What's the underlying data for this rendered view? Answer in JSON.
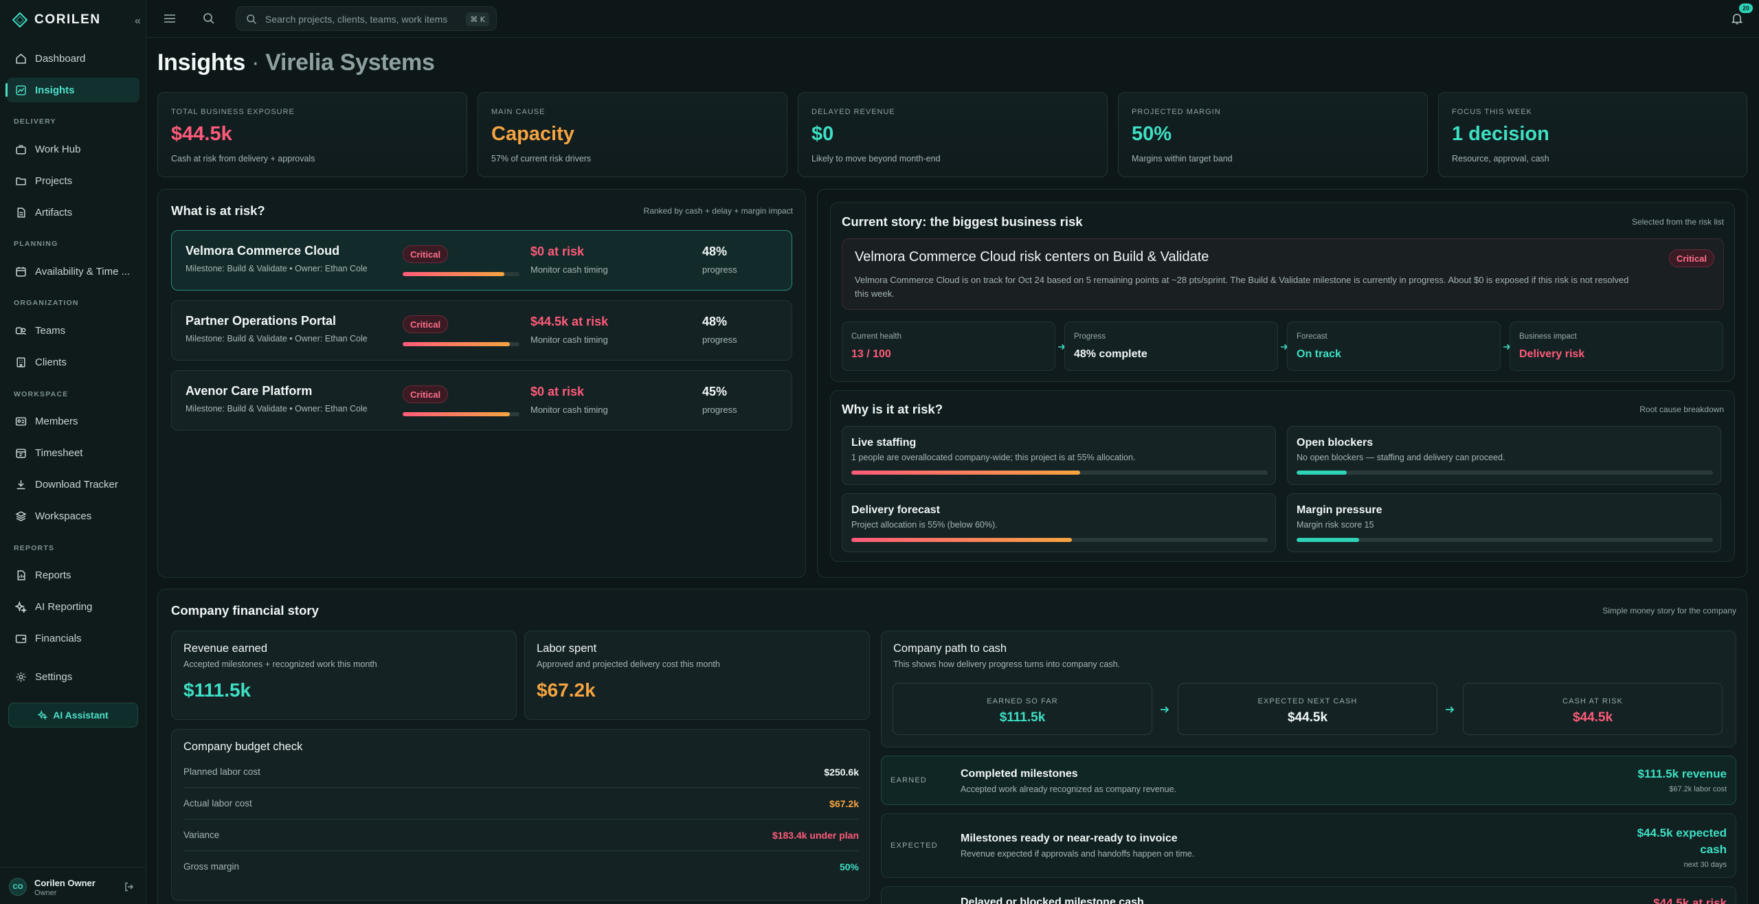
{
  "sidebar": {
    "brand": "CORILEN",
    "items": [
      {
        "label": "Dashboard",
        "icon": "dashboard-icon"
      },
      {
        "label": "Insights",
        "icon": "insights-icon"
      },
      {
        "label": "Work Hub",
        "icon": "briefcase-icon"
      },
      {
        "label": "Projects",
        "icon": "folder-icon"
      },
      {
        "label": "Artifacts",
        "icon": "file-icon"
      },
      {
        "label": "Availability & Time ...",
        "icon": "calendar-icon"
      },
      {
        "label": "Teams",
        "icon": "teams-icon"
      },
      {
        "label": "Clients",
        "icon": "building-icon"
      },
      {
        "label": "Members",
        "icon": "id-card-icon"
      },
      {
        "label": "Timesheet",
        "icon": "timesheet-icon"
      },
      {
        "label": "Download Tracker",
        "icon": "download-icon"
      },
      {
        "label": "Workspaces",
        "icon": "layers-icon"
      },
      {
        "label": "Reports",
        "icon": "report-icon"
      },
      {
        "label": "AI Reporting",
        "icon": "sparkle-icon"
      },
      {
        "label": "Financials",
        "icon": "wallet-icon"
      },
      {
        "label": "Settings",
        "icon": "gear-icon"
      }
    ],
    "sections": {
      "delivery": "DELIVERY",
      "planning": "PLANNING",
      "organization": "ORGANIZATION",
      "workspace": "WORKSPACE",
      "reports": "REPORTS"
    },
    "ai_button": "AI Assistant",
    "user": {
      "initials": "CO",
      "name": "Corilen Owner",
      "role": "Owner"
    }
  },
  "topbar": {
    "search_placeholder": "Search projects, clients, teams, work items",
    "shortcut": "⌘ K",
    "notification_count": "20"
  },
  "page": {
    "title": "Insights",
    "separator": "·",
    "org": "Virelia Systems"
  },
  "kpis": [
    {
      "label": "TOTAL BUSINESS EXPOSURE",
      "value": "$44.5k",
      "sub": "Cash at risk from delivery + approvals",
      "color": "#ff5b7a"
    },
    {
      "label": "MAIN CAUSE",
      "value": "Capacity",
      "sub": "57% of current risk drivers",
      "color": "#f5a441"
    },
    {
      "label": "DELAYED REVENUE",
      "value": "$0",
      "sub": "Likely to move beyond month-end",
      "color": "#3ee0c3"
    },
    {
      "label": "PROJECTED MARGIN",
      "value": "50%",
      "sub": "Margins within target band",
      "color": "#3ee0c3"
    },
    {
      "label": "FOCUS THIS WEEK",
      "value": "1 decision",
      "sub": "Resource, approval, cash",
      "color": "#3ee0c3"
    }
  ],
  "risk_panel": {
    "title": "What is at risk?",
    "note": "Ranked by cash + delay + margin impact",
    "rows": [
      {
        "name": "Velmora Commerce Cloud",
        "meta": "Milestone: Build & Validate • Owner: Ethan Cole",
        "badge": "Critical",
        "bar": 0.87,
        "at_risk": "$0 at risk",
        "at_risk_sub": "Monitor cash timing",
        "pct": "48%",
        "pct_sub": "progress"
      },
      {
        "name": "Partner Operations Portal",
        "meta": "Milestone: Build & Validate • Owner: Ethan Cole",
        "badge": "Critical",
        "bar": 0.92,
        "at_risk": "$44.5k at risk",
        "at_risk_sub": "Monitor cash timing",
        "pct": "48%",
        "pct_sub": "progress"
      },
      {
        "name": "Avenor Care Platform",
        "meta": "Milestone: Build & Validate • Owner: Ethan Cole",
        "badge": "Critical",
        "bar": 0.92,
        "at_risk": "$0 at risk",
        "at_risk_sub": "Monitor cash timing",
        "pct": "45%",
        "pct_sub": "progress"
      }
    ]
  },
  "story": {
    "title": "Current story: the biggest business risk",
    "note": "Selected from the risk list",
    "headline": "Velmora Commerce Cloud risk centers on Build & Validate",
    "badge": "Critical",
    "text": "Velmora Commerce Cloud is on track for Oct 24 based on 5 remaining points at ~28 pts/sprint. The Build & Validate milestone is currently in progress. About $0 is exposed if this risk is not resolved this week.",
    "metrics": [
      {
        "label": "Current health",
        "value": "13 / 100",
        "color": "#ff5b7a"
      },
      {
        "label": "Progress",
        "value": "48% complete",
        "color": "#f2f7f7"
      },
      {
        "label": "Forecast",
        "value": "On track",
        "color": "#3ee0c3"
      },
      {
        "label": "Business impact",
        "value": "Delivery risk",
        "color": "#ff5b7a"
      }
    ]
  },
  "why": {
    "title": "Why is it at risk?",
    "note": "Root cause breakdown",
    "drivers": [
      {
        "title": "Live staffing",
        "desc": "1 people are overallocated company-wide; this project is at 55% allocation.",
        "level": 0.55,
        "tone": "red"
      },
      {
        "title": "Open blockers",
        "desc": "No open blockers — staffing and delivery can proceed.",
        "level": 0.12,
        "tone": "teal"
      },
      {
        "title": "Delivery forecast",
        "desc": "Project allocation is 55% (below 60%).",
        "level": 0.53,
        "tone": "red"
      },
      {
        "title": "Margin pressure",
        "desc": "Margin risk score 15",
        "level": 0.15,
        "tone": "teal"
      }
    ]
  },
  "financial": {
    "title": "Company financial story",
    "note": "Simple money story for the company",
    "revenue": {
      "title": "Revenue earned",
      "desc": "Accepted milestones + recognized work this month",
      "value": "$111.5k"
    },
    "labor": {
      "title": "Labor spent",
      "desc": "Approved and projected delivery cost this month",
      "value": "$67.2k"
    },
    "budget": {
      "title": "Company budget check",
      "lines": [
        {
          "label": "Planned labor cost",
          "value": "$250.6k",
          "color": "#f2f7f7"
        },
        {
          "label": "Actual labor cost",
          "value": "$67.2k",
          "color": "#f5a441"
        },
        {
          "label": "Variance",
          "value": "$183.4k under plan",
          "color": "#ff5b7a"
        },
        {
          "label": "Gross margin",
          "value": "50%",
          "color": "#3ee0c3"
        }
      ]
    },
    "path": {
      "title": "Company path to cash",
      "desc": "This shows how delivery progress turns into company cash.",
      "steps": [
        {
          "label": "EARNED SO FAR",
          "value": "$111.5k",
          "color": "#3ee0c3"
        },
        {
          "label": "EXPECTED NEXT CASH",
          "value": "$44.5k",
          "color": "#f2f7f7"
        },
        {
          "label": "CASH AT RISK",
          "value": "$44.5k",
          "color": "#ff5b7a"
        }
      ]
    },
    "ledger": [
      {
        "tag": "EARNED",
        "title": "Completed milestones",
        "desc": "Accepted work already recognized as company revenue.",
        "value": "$111.5k revenue",
        "sub": "$67.2k labor cost"
      },
      {
        "tag": "EXPECTED",
        "title": "Milestones ready or near-ready to invoice",
        "desc": "Revenue expected if approvals and handoffs happen on time.",
        "value": "$44.5k expected cash",
        "sub": "next 30 days"
      },
      {
        "tag": "",
        "title": "Delayed or blocked milestone cash",
        "desc": "",
        "value": "$44.5k at risk",
        "sub": ""
      }
    ]
  }
}
